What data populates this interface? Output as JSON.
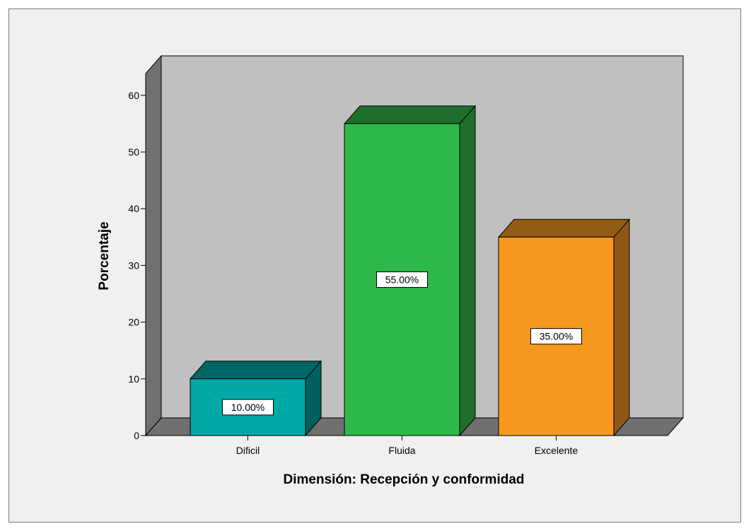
{
  "chart_data": {
    "type": "bar",
    "categories": [
      "Dificil",
      "Fluida",
      "Excelente"
    ],
    "values": [
      10,
      55,
      35
    ],
    "data_labels": [
      "10.00%",
      "55.00%",
      "35.00%"
    ],
    "title": "",
    "xlabel": "Dimensión: Recepción y conformidad",
    "ylabel": "Porcentaje",
    "ylim": [
      0,
      60
    ],
    "yticks": [
      0,
      10,
      20,
      30,
      40,
      50,
      60
    ],
    "grid": false,
    "legend": "none",
    "style": "3d",
    "colors": {
      "bars": [
        "#00A9A7",
        "#2FB84A",
        "#F7981E"
      ],
      "bar_tops": [
        "#006565",
        "#1F6E2C",
        "#945B12"
      ],
      "bar_sides": [
        "#005F5F",
        "#1F6E2C",
        "#8E5716"
      ],
      "back_wall": "#c0c0c0",
      "side_wall": "#707070",
      "floor": "#707070",
      "background": "#f0f0f0"
    }
  }
}
